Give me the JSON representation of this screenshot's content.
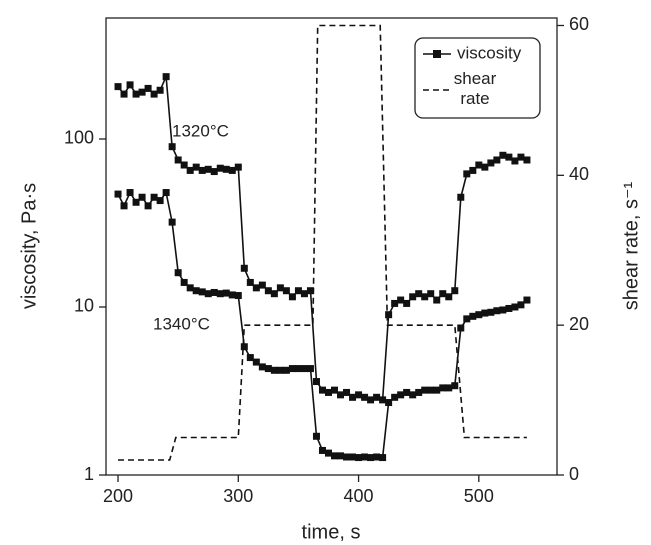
{
  "chart_data": {
    "type": "line",
    "xlabel": "time, s",
    "ylabel": "viscosity, Pa·s",
    "y2label": "shear rate, s⁻¹",
    "xlim": [
      190,
      565
    ],
    "xticks": [
      200,
      300,
      400,
      500
    ],
    "ylim": [
      1,
      525
    ],
    "yticks": [
      1,
      10,
      100
    ],
    "yscale": "log",
    "y2lim": [
      0,
      61
    ],
    "y2ticks": [
      0,
      20,
      40,
      60
    ],
    "legend": {
      "viscosity": "viscosity",
      "position": "upper right"
    },
    "series": [
      {
        "name": "1320°C",
        "color": "#111111",
        "marker": "square",
        "x": [
          200,
          205,
          210,
          215,
          220,
          225,
          230,
          235,
          240,
          245,
          250,
          255,
          260,
          265,
          270,
          275,
          280,
          285,
          290,
          295,
          300,
          305,
          310,
          315,
          320,
          325,
          330,
          335,
          340,
          345,
          350,
          355,
          360,
          365,
          370,
          375,
          380,
          385,
          390,
          395,
          400,
          405,
          410,
          415,
          420,
          425,
          430,
          435,
          440,
          445,
          450,
          455,
          460,
          465,
          470,
          475,
          480,
          485,
          490,
          495,
          500,
          505,
          510,
          515,
          520,
          525,
          530,
          535,
          540
        ],
        "values": [
          205,
          185,
          210,
          185,
          190,
          200,
          185,
          195,
          235,
          90,
          75,
          70,
          65,
          68,
          65,
          66,
          64,
          67,
          66,
          65,
          68,
          17,
          14,
          13,
          13.5,
          12.5,
          12,
          13,
          12.5,
          11.5,
          12.5,
          12,
          12.5,
          3.6,
          3.2,
          3.1,
          3.2,
          3.0,
          3.1,
          2.9,
          3.0,
          2.9,
          2.8,
          2.9,
          2.8,
          9,
          10.5,
          11,
          10.5,
          11.5,
          12,
          11.5,
          12,
          11,
          12,
          11.5,
          12.5,
          45,
          62,
          65,
          70,
          68,
          72,
          75,
          80,
          78,
          74,
          78,
          75
        ]
      },
      {
        "name": "1340°C",
        "color": "#111111",
        "marker": "square",
        "x": [
          200,
          205,
          210,
          215,
          220,
          225,
          230,
          235,
          240,
          245,
          250,
          255,
          260,
          265,
          270,
          275,
          280,
          285,
          290,
          295,
          300,
          305,
          310,
          315,
          320,
          325,
          330,
          335,
          340,
          345,
          350,
          355,
          360,
          365,
          370,
          375,
          380,
          385,
          390,
          395,
          400,
          405,
          410,
          415,
          420,
          425,
          430,
          435,
          440,
          445,
          450,
          455,
          460,
          465,
          470,
          475,
          480,
          485,
          490,
          495,
          500,
          505,
          510,
          515,
          520,
          525,
          530,
          535,
          540
        ],
        "values": [
          47,
          40,
          48,
          42,
          45,
          40,
          45,
          43,
          48,
          32,
          16,
          14,
          13,
          12.5,
          12.3,
          12,
          12.2,
          12,
          12.1,
          11.8,
          11.7,
          5.8,
          5,
          4.7,
          4.4,
          4.3,
          4.2,
          4.2,
          4.2,
          4.3,
          4.3,
          4.3,
          4.3,
          1.7,
          1.4,
          1.35,
          1.3,
          1.3,
          1.28,
          1.28,
          1.27,
          1.28,
          1.27,
          1.28,
          1.27,
          2.7,
          2.9,
          3.0,
          3.1,
          3.0,
          3.1,
          3.2,
          3.2,
          3.2,
          3.3,
          3.3,
          3.4,
          7.5,
          8.5,
          8.8,
          9,
          9.2,
          9.3,
          9.5,
          9.6,
          9.8,
          10,
          10.3,
          11
        ]
      },
      {
        "name": "shear rate",
        "color": "#111111",
        "dash": true,
        "axis": "y2",
        "x": [
          200,
          243,
          248,
          300,
          305,
          362,
          366,
          418,
          424,
          480,
          488,
          540
        ],
        "values": [
          2,
          2,
          5,
          5,
          20,
          20,
          60,
          60,
          20,
          20,
          5,
          5
        ]
      }
    ]
  }
}
